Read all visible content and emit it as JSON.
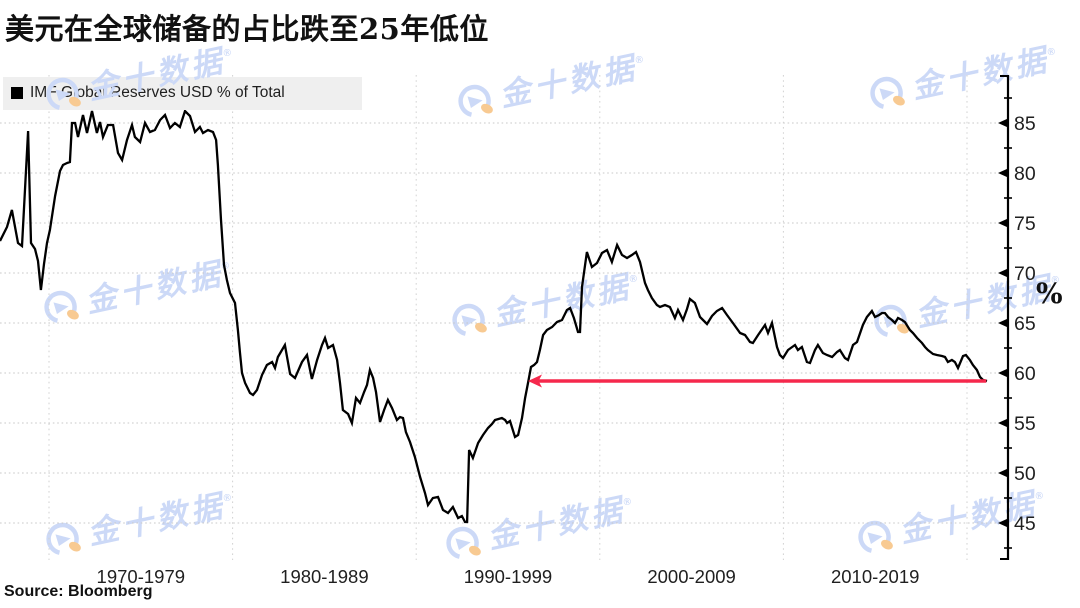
{
  "title": "美元在全球储备的占比跌至25年低位",
  "legend": {
    "label": "IMF Global Reserves USD % of Total",
    "swatch_color": "#000000"
  },
  "source": "Source: Bloomberg",
  "watermark": {
    "text": "金十数据",
    "reg": "®",
    "color": "#ccd9f7",
    "accent": "#f8ca92",
    "logo": "jin10-circle-logo"
  },
  "colors": {
    "background": "#ffffff",
    "line": "#000000",
    "arrow": "#f5284c",
    "grid_h": "#c8c8c8",
    "grid_v": "#d2d2d2",
    "axis": "#000000",
    "legend_bg": "#efefef",
    "text": "#1f1f1f"
  },
  "chart_data": {
    "type": "line",
    "title": "美元在全球储备的占比跌至25年低位",
    "unit_label": "%",
    "legend": "IMF Global Reserves USD % of Total",
    "grid": true,
    "x_axis": {
      "decade_gridline_years": [
        1970,
        1980,
        1990,
        2000,
        2010,
        2020
      ],
      "tick_labels": [
        "1970-1979",
        "1980-1989",
        "1990-1999",
        "2000-2009",
        "2010-2019"
      ],
      "range": [
        1967.3,
        2022.3
      ]
    },
    "y_axis": {
      "ticks": [
        45,
        50,
        55,
        60,
        65,
        70,
        75,
        80,
        85
      ],
      "minor_ticks": [
        42.5,
        47.5,
        52.5,
        57.5,
        62.5,
        67.5,
        72.5,
        77.5,
        82.5,
        87.5
      ],
      "range": [
        41.3,
        89.8
      ],
      "side": "right"
    },
    "annotation": {
      "type": "arrow-left",
      "value": 59.2,
      "from_year": 2021.05,
      "to_year": 1996.09,
      "color": "#f5284c",
      "meaning": "USD share back to level last seen 25 years ago"
    },
    "series": [
      {
        "name": "IMF Global Reserves USD % of Total",
        "color": "#000000",
        "points": [
          [
            1967.33,
            73.2
          ],
          [
            1967.71,
            74.6
          ],
          [
            1967.98,
            76.3
          ],
          [
            1968.31,
            73.0
          ],
          [
            1968.53,
            72.7
          ],
          [
            1968.86,
            84.2
          ],
          [
            1969.02,
            73.0
          ],
          [
            1969.24,
            72.4
          ],
          [
            1969.4,
            71.2
          ],
          [
            1969.56,
            68.3
          ],
          [
            1969.73,
            70.9
          ],
          [
            1969.89,
            73.0
          ],
          [
            1970.05,
            74.3
          ],
          [
            1970.33,
            77.7
          ],
          [
            1970.6,
            80.2
          ],
          [
            1970.76,
            80.8
          ],
          [
            1970.98,
            81.0
          ],
          [
            1971.14,
            81.1
          ],
          [
            1971.25,
            85.0
          ],
          [
            1971.42,
            85.0
          ],
          [
            1971.58,
            83.6
          ],
          [
            1971.85,
            85.8
          ],
          [
            1972.07,
            84.0
          ],
          [
            1972.34,
            86.2
          ],
          [
            1972.61,
            84.0
          ],
          [
            1972.78,
            85.1
          ],
          [
            1972.94,
            83.6
          ],
          [
            1973.21,
            84.8
          ],
          [
            1973.49,
            84.8
          ],
          [
            1973.76,
            82.0
          ],
          [
            1973.98,
            81.3
          ],
          [
            1974.25,
            83.3
          ],
          [
            1974.52,
            84.8
          ],
          [
            1974.68,
            83.6
          ],
          [
            1974.96,
            83.1
          ],
          [
            1975.23,
            85.0
          ],
          [
            1975.5,
            84.1
          ],
          [
            1975.77,
            84.3
          ],
          [
            1976.05,
            85.3
          ],
          [
            1976.32,
            85.8
          ],
          [
            1976.59,
            84.5
          ],
          [
            1976.86,
            85.0
          ],
          [
            1977.13,
            84.6
          ],
          [
            1977.41,
            86.2
          ],
          [
            1977.68,
            85.7
          ],
          [
            1977.95,
            84.1
          ],
          [
            1978.22,
            84.6
          ],
          [
            1978.39,
            84.0
          ],
          [
            1978.66,
            84.3
          ],
          [
            1978.93,
            84.1
          ],
          [
            1979.1,
            83.3
          ],
          [
            1979.2,
            80.8
          ],
          [
            1979.37,
            75.3
          ],
          [
            1979.53,
            70.8
          ],
          [
            1979.69,
            69.3
          ],
          [
            1979.86,
            68.0
          ],
          [
            1980.13,
            67.0
          ],
          [
            1980.29,
            64.3
          ],
          [
            1980.4,
            62.1
          ],
          [
            1980.51,
            60.0
          ],
          [
            1980.68,
            59.0
          ],
          [
            1980.95,
            58.0
          ],
          [
            1981.11,
            57.8
          ],
          [
            1981.33,
            58.3
          ],
          [
            1981.6,
            59.8
          ],
          [
            1981.87,
            60.8
          ],
          [
            1982.15,
            61.1
          ],
          [
            1982.31,
            60.5
          ],
          [
            1982.47,
            61.6
          ],
          [
            1982.85,
            62.8
          ],
          [
            1983.13,
            59.9
          ],
          [
            1983.4,
            59.5
          ],
          [
            1983.78,
            61.1
          ],
          [
            1984.05,
            61.8
          ],
          [
            1984.32,
            59.4
          ],
          [
            1984.6,
            61.3
          ],
          [
            1984.87,
            62.8
          ],
          [
            1985.03,
            63.5
          ],
          [
            1985.2,
            62.5
          ],
          [
            1985.47,
            62.8
          ],
          [
            1985.69,
            61.3
          ],
          [
            1985.85,
            59.0
          ],
          [
            1986.01,
            56.3
          ],
          [
            1986.29,
            55.9
          ],
          [
            1986.5,
            55.0
          ],
          [
            1986.72,
            57.5
          ],
          [
            1986.94,
            57.0
          ],
          [
            1987.16,
            58.1
          ],
          [
            1987.32,
            58.8
          ],
          [
            1987.48,
            60.3
          ],
          [
            1987.65,
            59.5
          ],
          [
            1987.81,
            58.1
          ],
          [
            1988.03,
            55.1
          ],
          [
            1988.25,
            56.3
          ],
          [
            1988.46,
            57.3
          ],
          [
            1988.68,
            56.5
          ],
          [
            1988.95,
            55.3
          ],
          [
            1989.12,
            55.6
          ],
          [
            1989.28,
            55.5
          ],
          [
            1989.44,
            54.1
          ],
          [
            1989.66,
            53.1
          ],
          [
            1989.93,
            51.6
          ],
          [
            1990.21,
            49.6
          ],
          [
            1990.48,
            48.0
          ],
          [
            1990.64,
            46.8
          ],
          [
            1990.91,
            47.5
          ],
          [
            1991.19,
            47.6
          ],
          [
            1991.46,
            46.3
          ],
          [
            1991.73,
            46.0
          ],
          [
            1992.0,
            46.6
          ],
          [
            1992.28,
            45.5
          ],
          [
            1992.49,
            45.7
          ],
          [
            1992.66,
            45.1
          ],
          [
            1992.77,
            45.1
          ],
          [
            1992.88,
            52.3
          ],
          [
            1993.09,
            51.5
          ],
          [
            1993.37,
            53.0
          ],
          [
            1993.64,
            53.8
          ],
          [
            1993.91,
            54.5
          ],
          [
            1994.13,
            54.9
          ],
          [
            1994.29,
            55.3
          ],
          [
            1994.67,
            55.5
          ],
          [
            1994.84,
            55.3
          ],
          [
            1994.95,
            55.0
          ],
          [
            1995.11,
            55.2
          ],
          [
            1995.38,
            53.6
          ],
          [
            1995.55,
            53.8
          ],
          [
            1995.76,
            55.5
          ],
          [
            1995.93,
            57.5
          ],
          [
            1996.09,
            59.0
          ],
          [
            1996.25,
            60.6
          ],
          [
            1996.42,
            60.8
          ],
          [
            1996.58,
            61.1
          ],
          [
            1996.74,
            62.3
          ],
          [
            1996.91,
            63.8
          ],
          [
            1997.12,
            64.3
          ],
          [
            1997.4,
            64.6
          ],
          [
            1997.67,
            65.1
          ],
          [
            1997.94,
            65.3
          ],
          [
            1998.21,
            66.3
          ],
          [
            1998.38,
            66.5
          ],
          [
            1998.59,
            65.5
          ],
          [
            1998.81,
            64.1
          ],
          [
            1998.92,
            64.1
          ],
          [
            1999.03,
            68.6
          ],
          [
            1999.3,
            72.1
          ],
          [
            1999.57,
            70.6
          ],
          [
            1999.85,
            71.0
          ],
          [
            2000.12,
            72.0
          ],
          [
            2000.39,
            72.3
          ],
          [
            2000.66,
            71.1
          ],
          [
            2000.94,
            72.8
          ],
          [
            2001.21,
            71.8
          ],
          [
            2001.48,
            71.5
          ],
          [
            2001.75,
            71.8
          ],
          [
            2001.97,
            72.1
          ],
          [
            2002.19,
            71.1
          ],
          [
            2002.46,
            69.0
          ],
          [
            2002.62,
            68.3
          ],
          [
            2002.84,
            67.5
          ],
          [
            2003.11,
            66.8
          ],
          [
            2003.28,
            66.6
          ],
          [
            2003.55,
            66.8
          ],
          [
            2003.82,
            66.6
          ],
          [
            2004.09,
            65.5
          ],
          [
            2004.26,
            66.3
          ],
          [
            2004.53,
            65.3
          ],
          [
            2004.75,
            66.4
          ],
          [
            2004.91,
            67.4
          ],
          [
            2005.18,
            67.0
          ],
          [
            2005.46,
            65.6
          ],
          [
            2005.62,
            65.3
          ],
          [
            2005.84,
            64.9
          ],
          [
            2006.11,
            65.7
          ],
          [
            2006.38,
            66.2
          ],
          [
            2006.66,
            66.5
          ],
          [
            2006.93,
            65.8
          ],
          [
            2007.25,
            65.0
          ],
          [
            2007.64,
            64.0
          ],
          [
            2007.91,
            63.8
          ],
          [
            2008.18,
            63.1
          ],
          [
            2008.34,
            63.0
          ],
          [
            2008.62,
            63.8
          ],
          [
            2009.0,
            64.8
          ],
          [
            2009.16,
            64.0
          ],
          [
            2009.38,
            65.0
          ],
          [
            2009.65,
            62.6
          ],
          [
            2009.81,
            61.8
          ],
          [
            2009.98,
            61.5
          ],
          [
            2010.25,
            62.3
          ],
          [
            2010.63,
            62.8
          ],
          [
            2010.79,
            62.3
          ],
          [
            2011.01,
            62.6
          ],
          [
            2011.28,
            61.1
          ],
          [
            2011.45,
            61.0
          ],
          [
            2011.72,
            62.3
          ],
          [
            2011.88,
            62.8
          ],
          [
            2012.15,
            62.0
          ],
          [
            2012.37,
            61.8
          ],
          [
            2012.65,
            61.6
          ],
          [
            2012.92,
            62.1
          ],
          [
            2013.08,
            62.3
          ],
          [
            2013.35,
            61.5
          ],
          [
            2013.52,
            61.3
          ],
          [
            2013.79,
            62.8
          ],
          [
            2014.01,
            63.1
          ],
          [
            2014.33,
            64.8
          ],
          [
            2014.55,
            65.6
          ],
          [
            2014.82,
            66.2
          ],
          [
            2014.99,
            65.6
          ],
          [
            2015.21,
            65.8
          ],
          [
            2015.37,
            66.0
          ],
          [
            2015.53,
            66.0
          ],
          [
            2015.7,
            65.6
          ],
          [
            2015.91,
            65.3
          ],
          [
            2016.08,
            65.0
          ],
          [
            2016.24,
            65.5
          ],
          [
            2016.46,
            65.3
          ],
          [
            2016.62,
            65.1
          ],
          [
            2016.89,
            64.3
          ],
          [
            2017.06,
            64.0
          ],
          [
            2017.28,
            63.5
          ],
          [
            2017.55,
            63.0
          ],
          [
            2017.71,
            62.6
          ],
          [
            2017.87,
            62.3
          ],
          [
            2018.15,
            61.9
          ],
          [
            2018.36,
            61.8
          ],
          [
            2018.64,
            61.7
          ],
          [
            2018.8,
            61.6
          ],
          [
            2018.96,
            61.1
          ],
          [
            2019.18,
            61.3
          ],
          [
            2019.34,
            61.1
          ],
          [
            2019.51,
            60.5
          ],
          [
            2019.78,
            61.7
          ],
          [
            2019.94,
            61.8
          ],
          [
            2020.16,
            61.3
          ],
          [
            2020.32,
            60.8
          ],
          [
            2020.54,
            60.3
          ],
          [
            2020.71,
            59.6
          ],
          [
            2020.87,
            59.3
          ],
          [
            2021.09,
            59.2
          ]
        ]
      }
    ]
  }
}
